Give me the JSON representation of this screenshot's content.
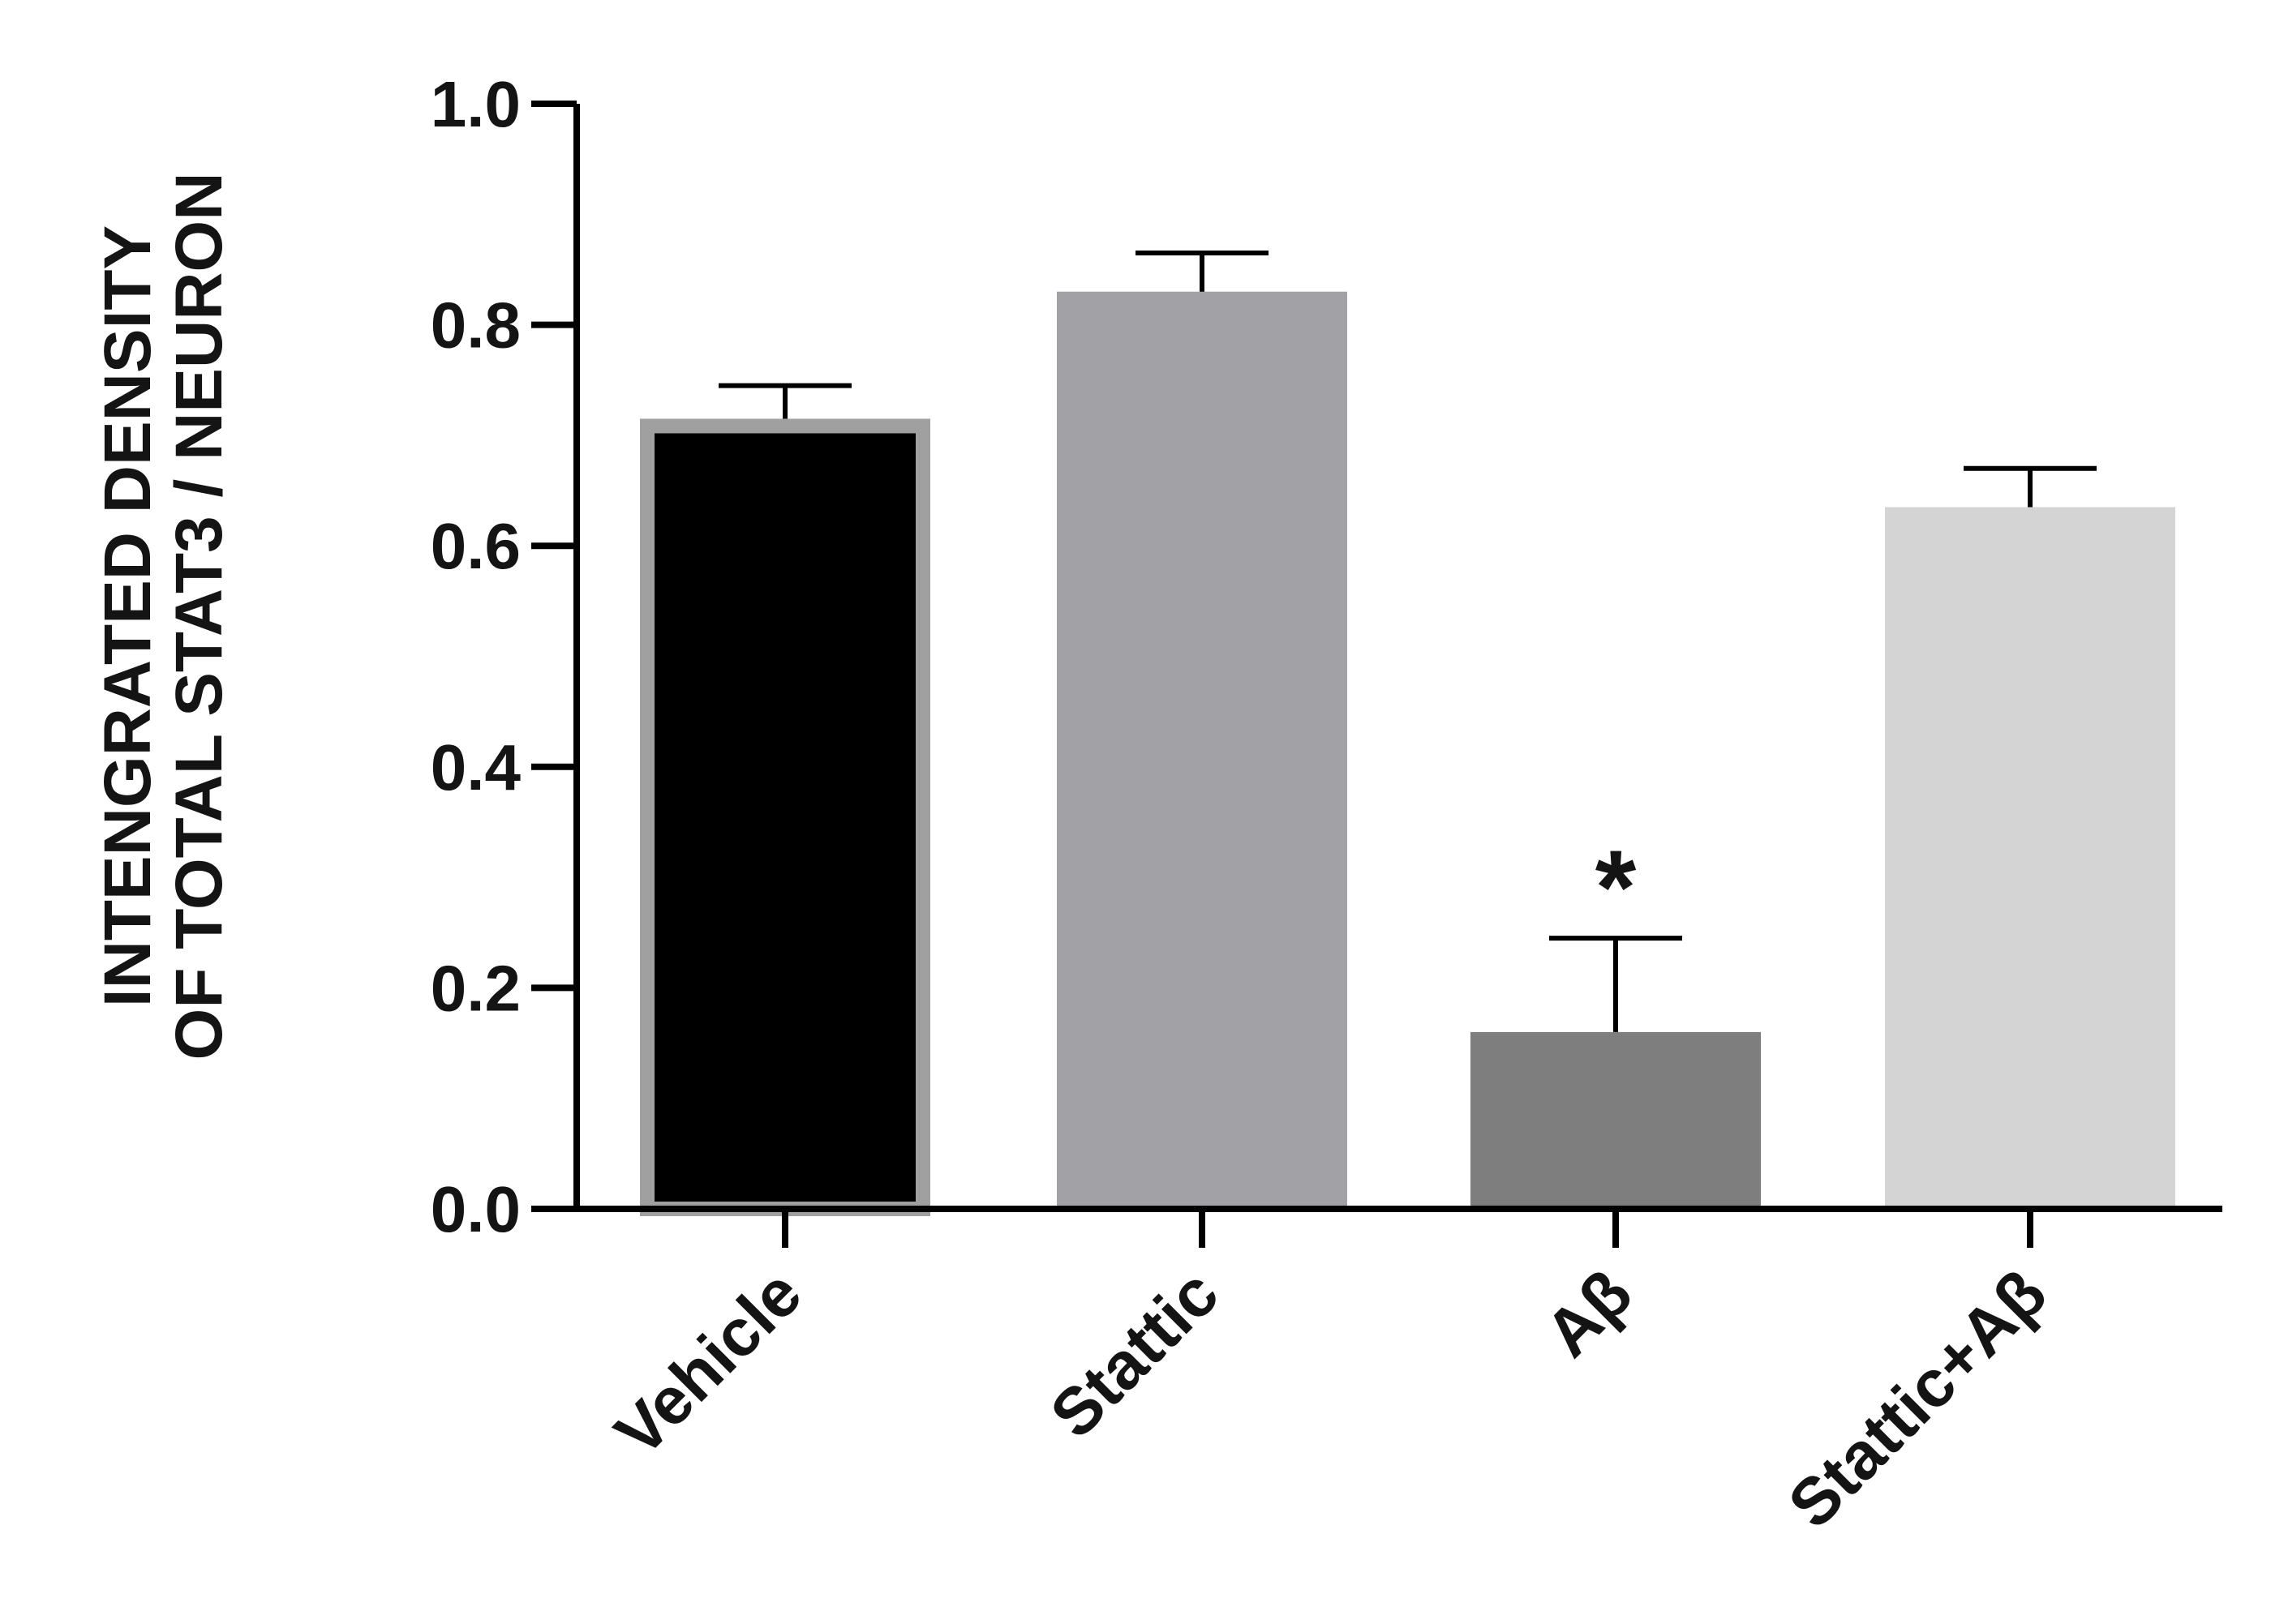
{
  "chart_data": {
    "type": "bar",
    "categories": [
      "Vehicle",
      "Stattic",
      "Aβ",
      "Stattic+Aβ"
    ],
    "values": [
      0.715,
      0.83,
      0.16,
      0.635
    ],
    "errors": [
      0.03,
      0.035,
      0.085,
      0.035
    ],
    "colors": [
      "#000000",
      "#a2a2a6",
      "#7e7e7e",
      "#d4d4d4"
    ],
    "bar_outline": [
      "#a0a0a0",
      null,
      null,
      null
    ],
    "significance": [
      "",
      "",
      "*",
      ""
    ],
    "ylabel_line1": "INTENGRATED DENSITY",
    "ylabel_line2": "OF TOTAL STAT3 / NEURON",
    "xlabel": "",
    "ylim": [
      0,
      1.0
    ],
    "yticks": [
      "0.0",
      "0.2",
      "0.4",
      "0.6",
      "0.8",
      "1.0"
    ],
    "grid": false
  }
}
